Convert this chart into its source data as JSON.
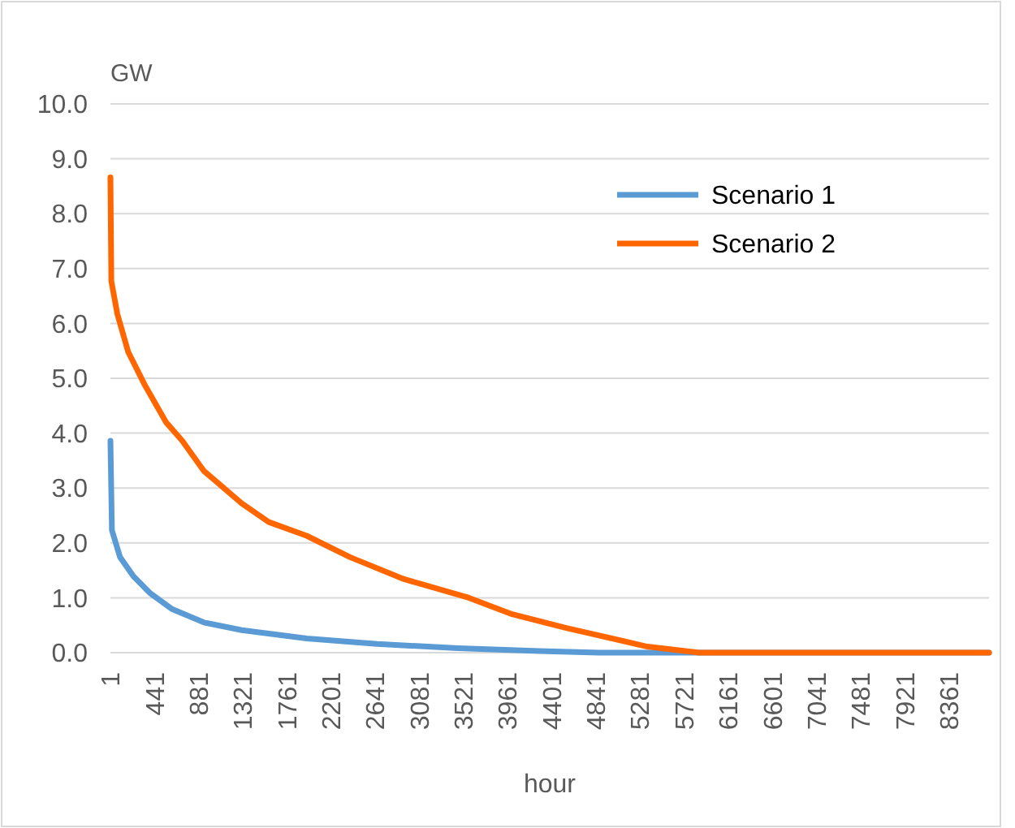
{
  "chart_data": {
    "type": "line",
    "xlabel": "hour",
    "ylabel": "GW",
    "xlim": [
      1,
      8760
    ],
    "ylim": [
      0,
      10
    ],
    "xticks": [
      1,
      441,
      881,
      1321,
      1761,
      2201,
      2641,
      3081,
      3521,
      3961,
      4401,
      4841,
      5281,
      5721,
      6161,
      6601,
      7041,
      7481,
      7921,
      8361
    ],
    "yticks": [
      {
        "value": 0,
        "label": "0.0"
      },
      {
        "value": 1,
        "label": "1.0"
      },
      {
        "value": 2,
        "label": "2.0"
      },
      {
        "value": 3,
        "label": "3.0"
      },
      {
        "value": 4,
        "label": "4.0"
      },
      {
        "value": 5,
        "label": "5.0"
      },
      {
        "value": 6,
        "label": "6.0"
      },
      {
        "value": 7,
        "label": "7.0"
      },
      {
        "value": 8,
        "label": "8.0"
      },
      {
        "value": 9,
        "label": "9.0"
      },
      {
        "value": 10,
        "label": "10.0"
      }
    ],
    "grid": "y",
    "legend": "top right",
    "line_style": "solid",
    "series": [
      {
        "name": "Scenario 1",
        "color": "#5b9bd5",
        "x": [
          1,
          16,
          97,
          231,
          393,
          610,
          933,
          1310,
          1957,
          2658,
          3467,
          4276,
          4870,
          6000,
          8760
        ],
        "values": [
          3.86,
          2.23,
          1.74,
          1.39,
          1.09,
          0.8,
          0.55,
          0.41,
          0.26,
          0.16,
          0.08,
          0.03,
          0,
          0,
          0
        ]
      },
      {
        "name": "Scenario 2",
        "color": "#ff6600",
        "x": [
          1,
          10,
          70,
          178,
          340,
          555,
          717,
          933,
          1310,
          1580,
          1957,
          2390,
          2928,
          3575,
          4007,
          4546,
          5354,
          5870,
          8760
        ],
        "values": [
          8.66,
          6.77,
          6.17,
          5.48,
          4.89,
          4.2,
          3.86,
          3.31,
          2.72,
          2.38,
          2.13,
          1.74,
          1.34,
          1.0,
          0.7,
          0.45,
          0.11,
          0,
          0
        ]
      }
    ]
  }
}
